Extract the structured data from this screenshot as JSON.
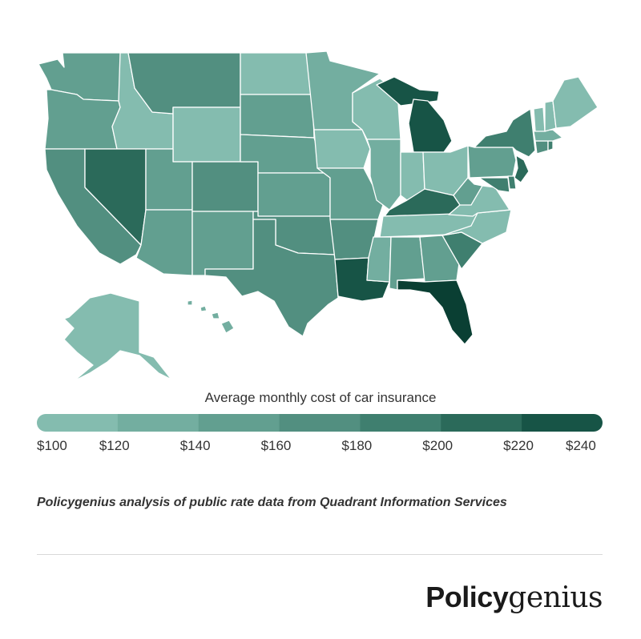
{
  "map": {
    "colors": {
      "c100": "#84bcaf",
      "c120": "#73aea0",
      "c140": "#629f90",
      "c160": "#528f80",
      "c180": "#3f7f6f",
      "c200": "#2b6a5a",
      "c220": "#175446",
      "c240": "#0a3f33"
    },
    "states": [
      {
        "name": "Washington",
        "bin": "c140"
      },
      {
        "name": "Oregon",
        "bin": "c140"
      },
      {
        "name": "California",
        "bin": "c160"
      },
      {
        "name": "Idaho",
        "bin": "c100"
      },
      {
        "name": "Nevada",
        "bin": "c200"
      },
      {
        "name": "Montana",
        "bin": "c160"
      },
      {
        "name": "Wyoming",
        "bin": "c100"
      },
      {
        "name": "Utah",
        "bin": "c140"
      },
      {
        "name": "Arizona",
        "bin": "c140"
      },
      {
        "name": "Colorado",
        "bin": "c160"
      },
      {
        "name": "New Mexico",
        "bin": "c140"
      },
      {
        "name": "North Dakota",
        "bin": "c100"
      },
      {
        "name": "South Dakota",
        "bin": "c140"
      },
      {
        "name": "Nebraska",
        "bin": "c140"
      },
      {
        "name": "Kansas",
        "bin": "c140"
      },
      {
        "name": "Oklahoma",
        "bin": "c160"
      },
      {
        "name": "Texas",
        "bin": "c160"
      },
      {
        "name": "Minnesota",
        "bin": "c120"
      },
      {
        "name": "Iowa",
        "bin": "c100"
      },
      {
        "name": "Missouri",
        "bin": "c140"
      },
      {
        "name": "Arkansas",
        "bin": "c160"
      },
      {
        "name": "Louisiana",
        "bin": "c220"
      },
      {
        "name": "Wisconsin",
        "bin": "c100"
      },
      {
        "name": "Illinois",
        "bin": "c120"
      },
      {
        "name": "Michigan",
        "bin": "c220"
      },
      {
        "name": "Indiana",
        "bin": "c100"
      },
      {
        "name": "Ohio",
        "bin": "c100"
      },
      {
        "name": "Kentucky",
        "bin": "c200"
      },
      {
        "name": "Tennessee",
        "bin": "c100"
      },
      {
        "name": "Mississippi",
        "bin": "c120"
      },
      {
        "name": "Alabama",
        "bin": "c140"
      },
      {
        "name": "Georgia",
        "bin": "c140"
      },
      {
        "name": "Florida",
        "bin": "c240"
      },
      {
        "name": "South Carolina",
        "bin": "c180"
      },
      {
        "name": "North Carolina",
        "bin": "c100"
      },
      {
        "name": "Virginia",
        "bin": "c100"
      },
      {
        "name": "West Virginia",
        "bin": "c140"
      },
      {
        "name": "Pennsylvania",
        "bin": "c140"
      },
      {
        "name": "New York",
        "bin": "c180"
      },
      {
        "name": "New Jersey",
        "bin": "c200"
      },
      {
        "name": "Maryland",
        "bin": "c180"
      },
      {
        "name": "Delaware",
        "bin": "c180"
      },
      {
        "name": "Connecticut",
        "bin": "c160"
      },
      {
        "name": "Rhode Island",
        "bin": "c180"
      },
      {
        "name": "Massachusetts",
        "bin": "c120"
      },
      {
        "name": "Vermont",
        "bin": "c100"
      },
      {
        "name": "New Hampshire",
        "bin": "c100"
      },
      {
        "name": "Maine",
        "bin": "c100"
      },
      {
        "name": "Alaska",
        "bin": "c100"
      },
      {
        "name": "Hawaii",
        "bin": "c120"
      }
    ]
  },
  "legend": {
    "title": "Average monthly cost of car insurance",
    "ticks": [
      "$100",
      "$120",
      "$140",
      "$160",
      "$180",
      "$200",
      "$220",
      "$240"
    ],
    "bins": [
      "c100",
      "c120",
      "c140",
      "c160",
      "c180",
      "c200",
      "c220"
    ]
  },
  "source": "Policygenius analysis of public rate data from Quadrant Information Services",
  "logo": {
    "bold": "Policy",
    "light": "genius"
  }
}
